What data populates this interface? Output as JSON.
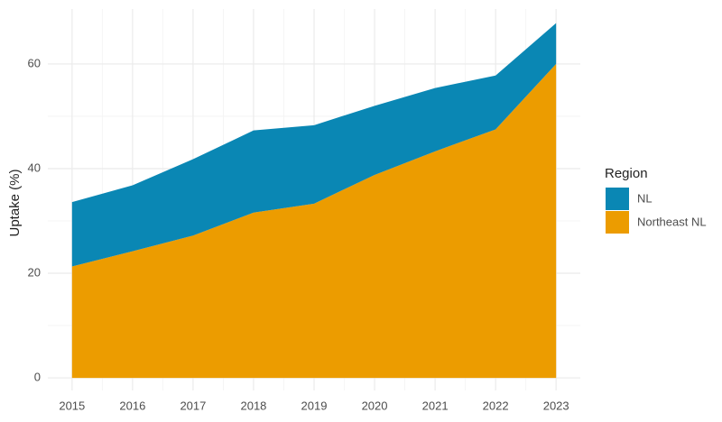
{
  "chart_data": {
    "type": "area",
    "stacked": true,
    "y_label": "Uptake (%)",
    "legend_title": "Region",
    "legend": "right",
    "x": [
      2015,
      2016,
      2017,
      2018,
      2019,
      2020,
      2021,
      2022,
      2023
    ],
    "series": [
      {
        "name": "NL",
        "color": "#0a87b4",
        "values": [
          12.3,
          12.6,
          14.6,
          15.7,
          15.0,
          13.2,
          12.1,
          10.3,
          7.8
        ]
      },
      {
        "name": "Northeast NL",
        "color": "#ec9c00",
        "values": [
          21.3,
          24.2,
          27.2,
          31.6,
          33.3,
          38.8,
          43.3,
          47.5,
          60.0
        ]
      }
    ],
    "xlim": [
      2014.6,
      2023.4
    ],
    "xticks": [
      2015,
      2016,
      2017,
      2018,
      2019,
      2020,
      2021,
      2022,
      2023
    ],
    "ylim": [
      -2.4,
      70.5
    ],
    "yticks": [
      0,
      20,
      40,
      60
    ],
    "grid": true,
    "minor_grid": true
  }
}
